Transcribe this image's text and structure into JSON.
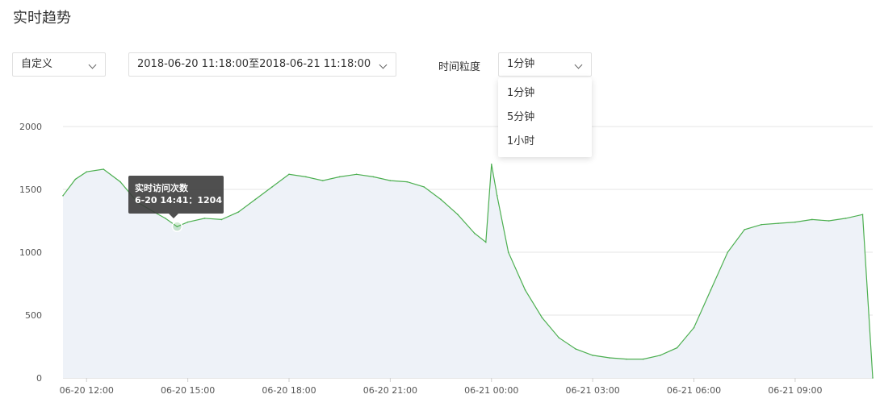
{
  "page_title": "实时趋势",
  "controls": {
    "mode_select": "自定义",
    "range_select": "2018-06-20 11:18:00至2018-06-21 11:18:00",
    "granularity_label": "时间粒度",
    "granularity_select": "1分钟",
    "granularity_options": [
      "1分钟",
      "5分钟",
      "1小时"
    ]
  },
  "tooltip": {
    "title": "实时访问次数",
    "line": "6-20 14:41：1204"
  },
  "colors": {
    "line": "#4caf50",
    "area": "#eef2f8",
    "grid": "#e6e6e6"
  },
  "chart_data": {
    "type": "area",
    "title": "",
    "xlabel": "",
    "ylabel": "",
    "ylim": [
      0,
      2000
    ],
    "y_ticks": [
      0,
      500,
      1000,
      1500,
      2000
    ],
    "x_ticks": [
      "06-20 12:00",
      "06-20 15:00",
      "06-20 18:00",
      "06-20 21:00",
      "06-21 00:00",
      "06-21 03:00",
      "06-21 06:00",
      "06-21 09:00"
    ],
    "x_range": [
      "06-20 11:18",
      "06-21 11:18"
    ],
    "grid": true,
    "legend": "none",
    "series": [
      {
        "name": "实时访问次数",
        "x": [
          "06-20 11:18",
          "06-20 11:40",
          "06-20 12:00",
          "06-20 12:30",
          "06-20 13:00",
          "06-20 13:30",
          "06-20 14:00",
          "06-20 14:20",
          "06-20 14:41",
          "06-20 15:00",
          "06-20 15:30",
          "06-20 16:00",
          "06-20 16:30",
          "06-20 17:00",
          "06-20 17:30",
          "06-20 18:00",
          "06-20 18:30",
          "06-20 19:00",
          "06-20 19:30",
          "06-20 20:00",
          "06-20 20:30",
          "06-20 21:00",
          "06-20 21:30",
          "06-20 22:00",
          "06-20 22:30",
          "06-20 23:00",
          "06-20 23:30",
          "06-20 23:50",
          "06-21 00:00",
          "06-21 00:10",
          "06-21 00:30",
          "06-21 01:00",
          "06-21 01:30",
          "06-21 02:00",
          "06-21 02:30",
          "06-21 03:00",
          "06-21 03:30",
          "06-21 04:00",
          "06-21 04:30",
          "06-21 05:00",
          "06-21 05:30",
          "06-21 06:00",
          "06-21 06:30",
          "06-21 07:00",
          "06-21 07:30",
          "06-21 08:00",
          "06-21 08:30",
          "06-21 09:00",
          "06-21 09:30",
          "06-21 10:00",
          "06-21 10:30",
          "06-21 11:00",
          "06-21 11:18"
        ],
        "values": [
          1450,
          1580,
          1640,
          1660,
          1560,
          1400,
          1320,
          1270,
          1204,
          1240,
          1270,
          1260,
          1320,
          1420,
          1520,
          1620,
          1600,
          1570,
          1600,
          1620,
          1600,
          1570,
          1560,
          1520,
          1420,
          1300,
          1150,
          1080,
          1700,
          1450,
          1000,
          700,
          480,
          320,
          230,
          180,
          160,
          150,
          150,
          180,
          240,
          400,
          700,
          1000,
          1180,
          1220,
          1230,
          1240,
          1260,
          1250,
          1270,
          1300,
          0
        ]
      }
    ]
  }
}
